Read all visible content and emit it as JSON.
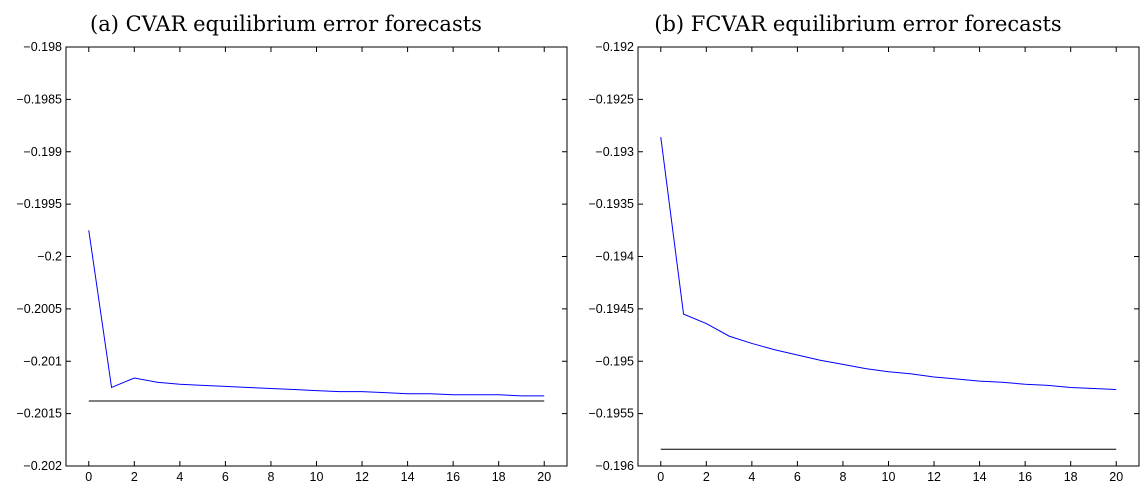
{
  "chart_data": [
    {
      "type": "line",
      "title": "(a) CVAR equilibrium error forecasts",
      "xlabel": "",
      "ylabel": "",
      "xlim": [
        -1,
        21
      ],
      "ylim": [
        -0.202,
        -0.198
      ],
      "xticks": [
        0,
        2,
        4,
        6,
        8,
        10,
        12,
        14,
        16,
        18,
        20
      ],
      "xtick_labels": [
        "0",
        "2",
        "4",
        "6",
        "8",
        "10",
        "12",
        "14",
        "16",
        "18",
        "20"
      ],
      "yticks": [
        -0.198,
        -0.1985,
        -0.199,
        -0.1995,
        -0.2,
        -0.2005,
        -0.201,
        -0.2015,
        -0.202
      ],
      "ytick_labels": [
        "−0.198",
        "−0.1985",
        "−0.199",
        "−0.1995",
        "−0.2",
        "−0.2005",
        "−0.201",
        "−0.2015",
        "−0.202"
      ],
      "grid": false,
      "series": [
        {
          "color": "#0000ff",
          "x": [
            0,
            1,
            2,
            3,
            4,
            5,
            6,
            7,
            8,
            9,
            10,
            11,
            12,
            13,
            14,
            15,
            16,
            17,
            18,
            19,
            20
          ],
          "y": [
            -0.19975,
            -0.20125,
            -0.20116,
            -0.2012,
            -0.20122,
            -0.20123,
            -0.20124,
            -0.20125,
            -0.20126,
            -0.20127,
            -0.20128,
            -0.20129,
            -0.20129,
            -0.2013,
            -0.20131,
            -0.20131,
            -0.20132,
            -0.20132,
            -0.20132,
            -0.20133,
            -0.20133
          ]
        },
        {
          "color": "#000000",
          "x": [
            0,
            20
          ],
          "y": [
            -0.20138,
            -0.20138
          ]
        }
      ]
    },
    {
      "type": "line",
      "title": "(b) FCVAR equilibrium error forecasts",
      "xlabel": "",
      "ylabel": "",
      "xlim": [
        -1,
        21
      ],
      "ylim": [
        -0.196,
        -0.192
      ],
      "xticks": [
        0,
        2,
        4,
        6,
        8,
        10,
        12,
        14,
        16,
        18,
        20
      ],
      "xtick_labels": [
        "0",
        "2",
        "4",
        "6",
        "8",
        "10",
        "12",
        "14",
        "16",
        "18",
        "20"
      ],
      "yticks": [
        -0.192,
        -0.1925,
        -0.193,
        -0.1935,
        -0.194,
        -0.1945,
        -0.195,
        -0.1955,
        -0.196
      ],
      "ytick_labels": [
        "−0.192",
        "−0.1925",
        "−0.193",
        "−0.1935",
        "−0.194",
        "−0.1945",
        "−0.195",
        "−0.1955",
        "−0.196"
      ],
      "grid": false,
      "series": [
        {
          "color": "#0000ff",
          "x": [
            0,
            1,
            2,
            3,
            4,
            5,
            6,
            7,
            8,
            9,
            10,
            11,
            12,
            13,
            14,
            15,
            16,
            17,
            18,
            19,
            20
          ],
          "y": [
            -0.19286,
            -0.19455,
            -0.19464,
            -0.19476,
            -0.19483,
            -0.19489,
            -0.19494,
            -0.19499,
            -0.19503,
            -0.19507,
            -0.1951,
            -0.19512,
            -0.19515,
            -0.19517,
            -0.19519,
            -0.1952,
            -0.19522,
            -0.19523,
            -0.19525,
            -0.19526,
            -0.19527
          ]
        },
        {
          "color": "#000000",
          "x": [
            0,
            20
          ],
          "y": [
            -0.19584,
            -0.19584
          ]
        }
      ]
    }
  ]
}
